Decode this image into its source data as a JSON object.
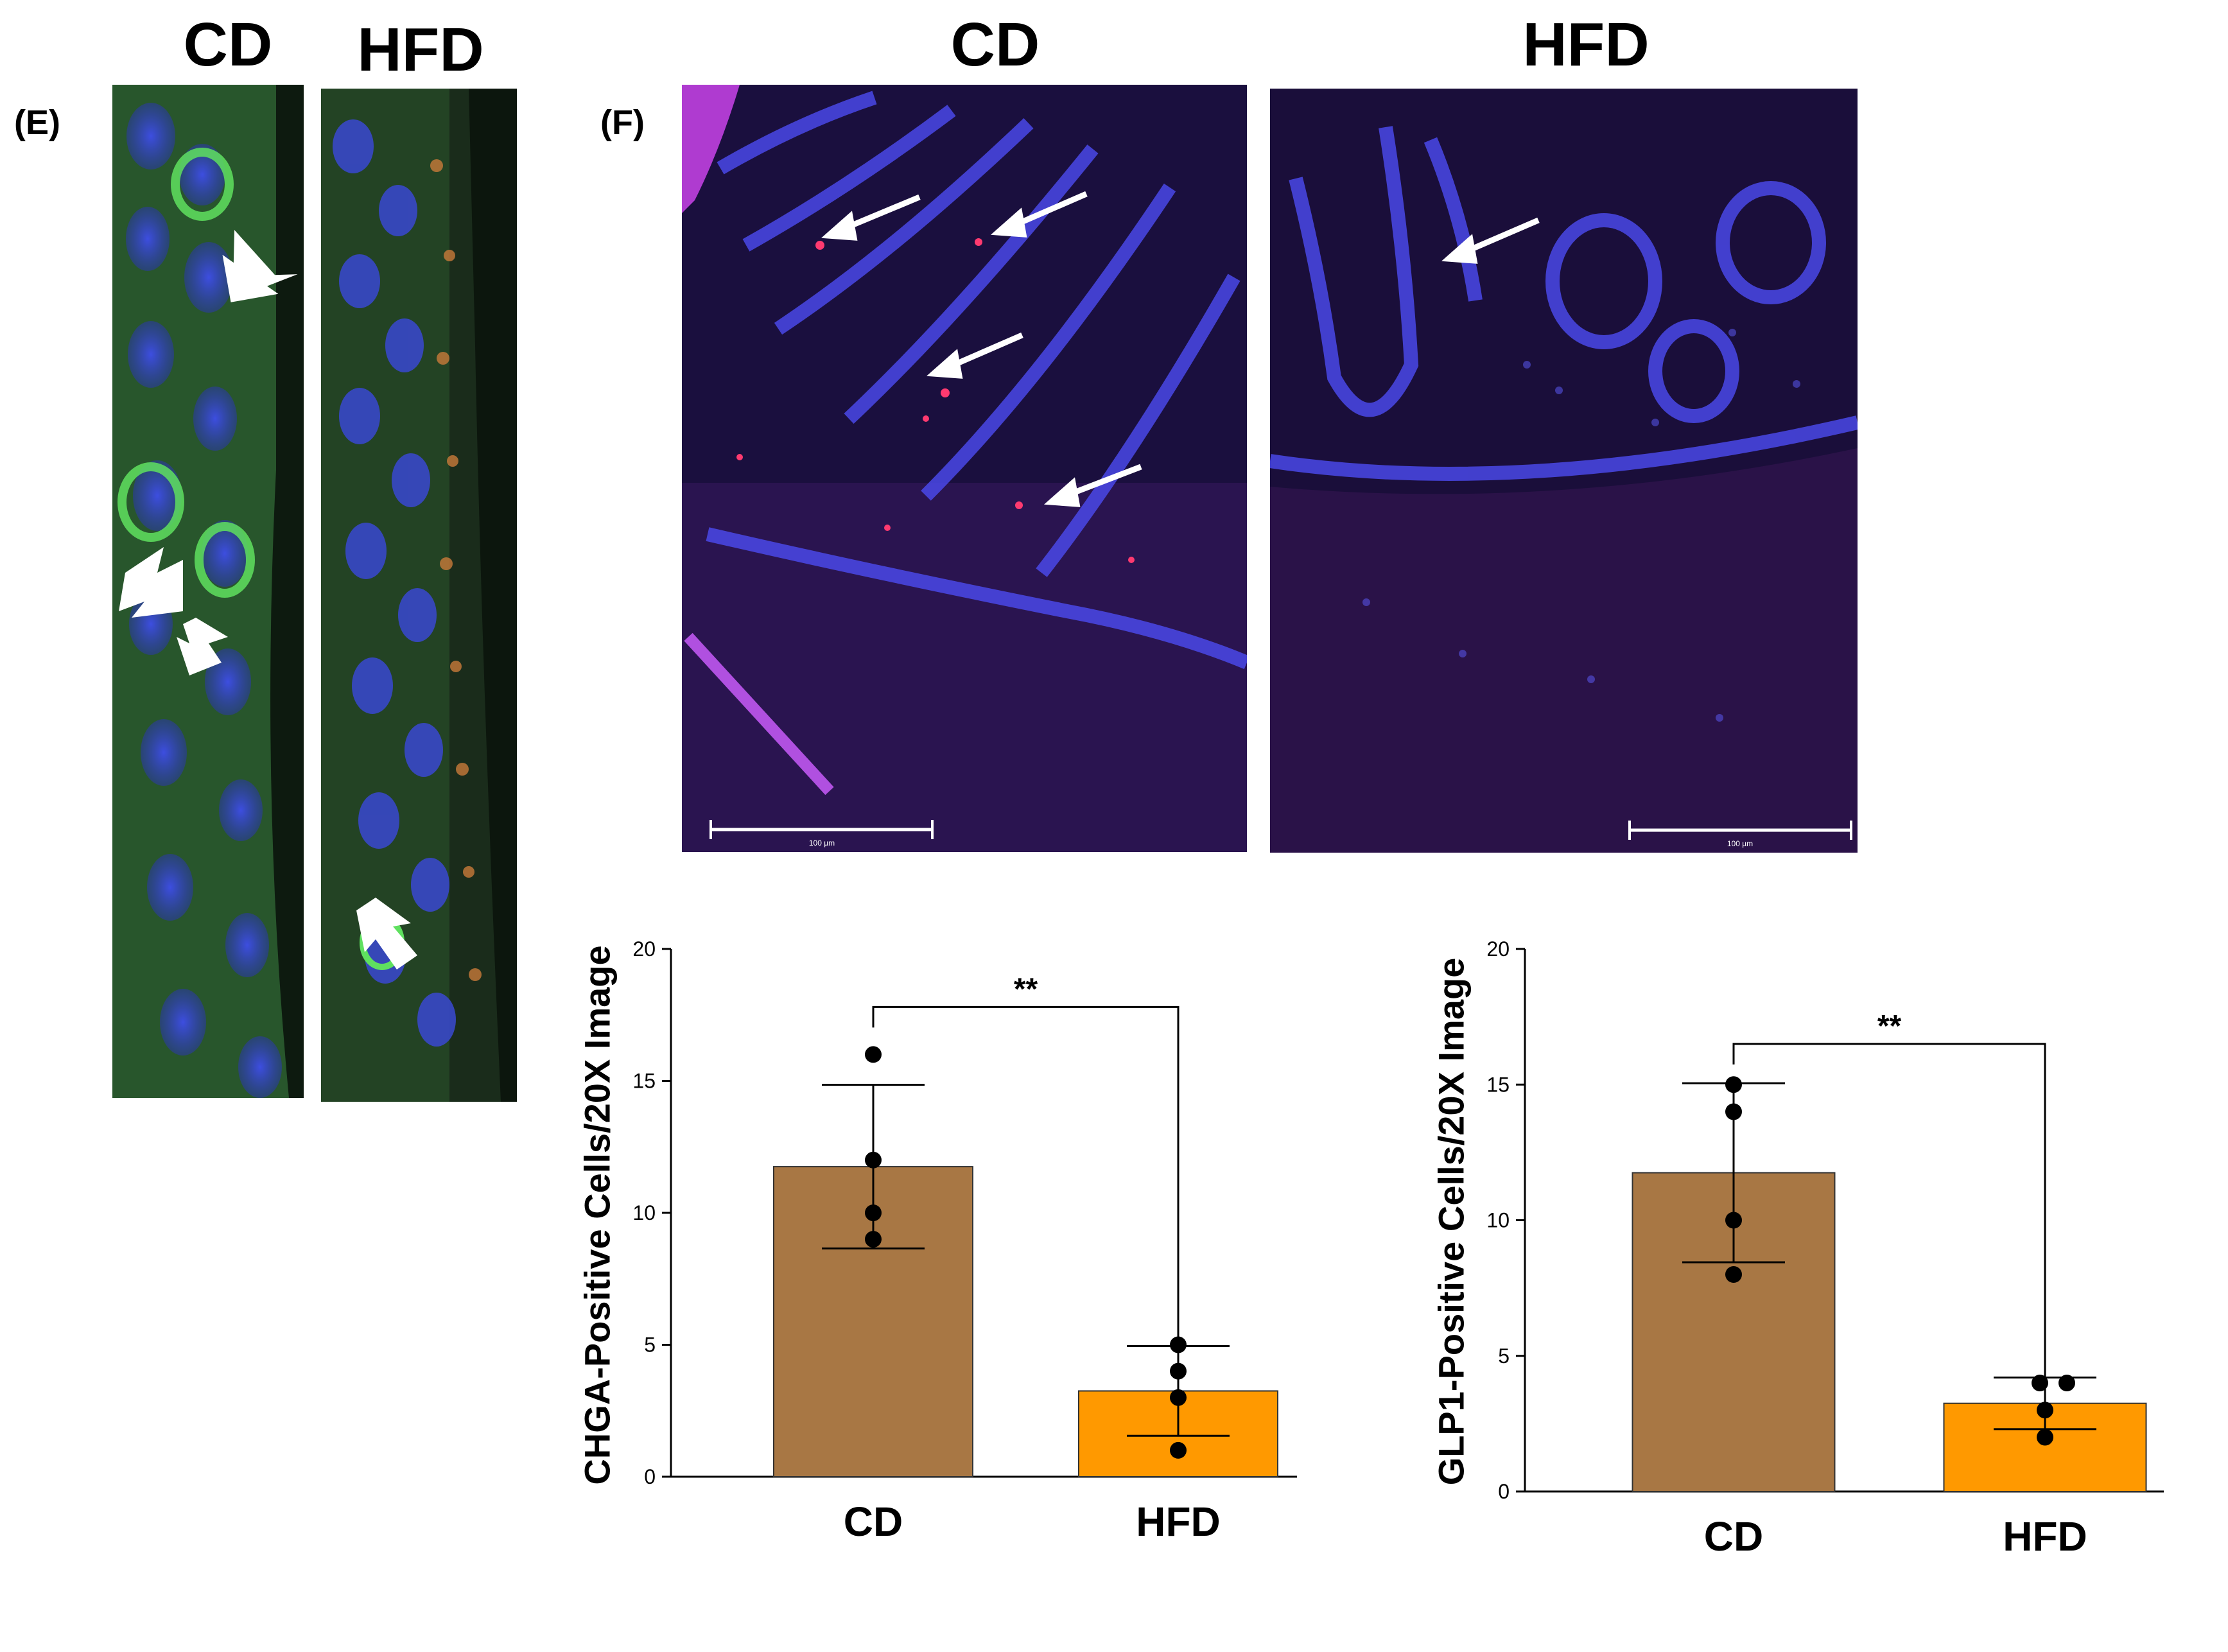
{
  "panel_e": {
    "label": "(E)",
    "col_titles": [
      "CD",
      "HFD"
    ]
  },
  "panel_f": {
    "label": "(F)",
    "col_titles": [
      "CD",
      "HFD"
    ],
    "scalebar_labels": [
      "100 µm",
      "100 µm"
    ]
  },
  "colors": {
    "cd_bar": "#A87744",
    "hfd_bar": "#FF9900",
    "stain_blue": "#3a3acc",
    "stain_green": "#3fae3f",
    "stain_red": "#ff3a70"
  },
  "chart_data": [
    {
      "type": "bar",
      "categories": [
        "CD",
        "HFD"
      ],
      "values": [
        11.75,
        3.25
      ],
      "error": [
        3.1,
        1.7
      ],
      "points": [
        [
          16,
          12,
          10,
          9
        ],
        [
          5,
          4,
          3,
          1
        ]
      ],
      "ylabel": "CHGA-Positive Cells/20X Image",
      "ylim": [
        0,
        20
      ],
      "yticks": [
        "0",
        "5",
        "10",
        "15",
        "20"
      ],
      "significance": "**",
      "colors": [
        "#A87744",
        "#FF9900"
      ]
    },
    {
      "type": "bar",
      "categories": [
        "CD",
        "HFD"
      ],
      "values": [
        11.75,
        3.25
      ],
      "error": [
        3.3,
        0.95
      ],
      "points": [
        [
          15,
          14,
          10,
          8
        ],
        [
          4,
          4,
          3,
          2
        ]
      ],
      "ylabel": "GLP1-Positive Cells/20X Image",
      "ylim": [
        0,
        20
      ],
      "yticks": [
        "0",
        "5",
        "10",
        "15",
        "20"
      ],
      "significance": "**",
      "colors": [
        "#A87744",
        "#FF9900"
      ]
    }
  ]
}
